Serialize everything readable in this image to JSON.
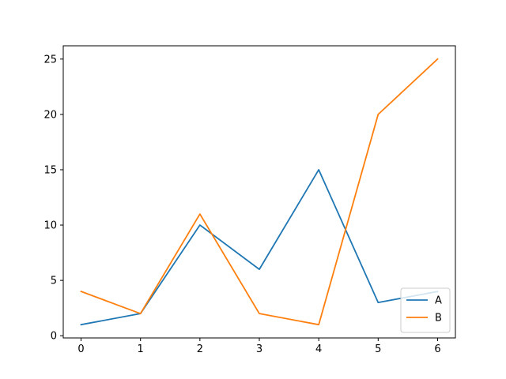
{
  "chart_data": {
    "type": "line",
    "title": "",
    "xlabel": "",
    "ylabel": "",
    "x": [
      0,
      1,
      2,
      3,
      4,
      5,
      6
    ],
    "xlim": [
      -0.3,
      6.3
    ],
    "ylim": [
      -0.2,
      26.2
    ],
    "xticks": [
      0,
      1,
      2,
      3,
      4,
      5,
      6
    ],
    "yticks": [
      0,
      5,
      10,
      15,
      20,
      25
    ],
    "grid": false,
    "legend_position": "lower-right",
    "series": [
      {
        "name": "A",
        "color": "#1f77b4",
        "values": [
          1,
          2,
          10,
          6,
          15,
          3,
          4
        ]
      },
      {
        "name": "B",
        "color": "#ff7f0e",
        "values": [
          4,
          2,
          11,
          2,
          1,
          20,
          25
        ]
      }
    ]
  }
}
